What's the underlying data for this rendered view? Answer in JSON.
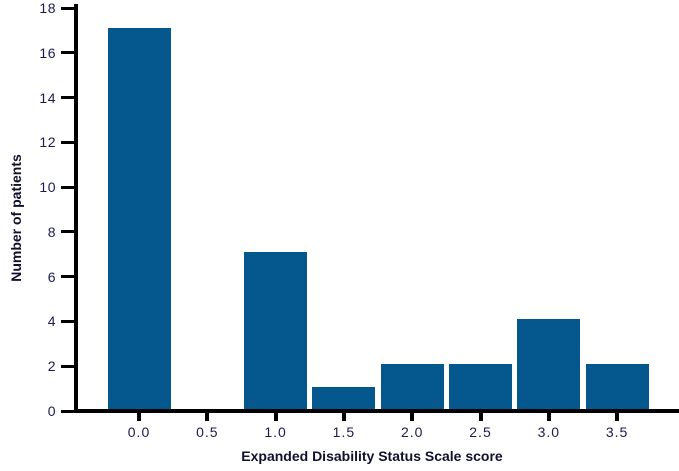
{
  "figure": {
    "background": "#ffffff"
  },
  "chart_data": {
    "type": "bar",
    "categories": [
      "0.0",
      "0.5",
      "1.0",
      "1.5",
      "2.0",
      "2.5",
      "3.0",
      "3.5"
    ],
    "values": [
      17,
      0,
      7,
      1,
      2,
      2,
      4,
      2
    ],
    "title": "",
    "xlabel": "Expanded Disability Status Scale score",
    "ylabel": "Number of patients",
    "ylim": [
      0,
      18
    ],
    "yticks": [
      0,
      2,
      4,
      6,
      8,
      10,
      12,
      14,
      16,
      18
    ],
    "grid": false,
    "legend": false,
    "bar_color": "#05588e",
    "axis_color": "#000000",
    "tick_label_color": "#1b1b4d",
    "title_color": "#10102e"
  }
}
